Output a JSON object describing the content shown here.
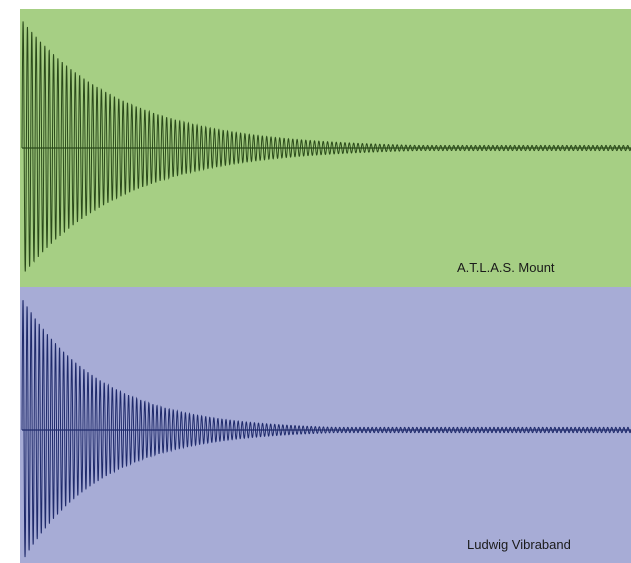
{
  "chart_data": [
    {
      "type": "line",
      "title": "",
      "xlabel": "",
      "ylabel": "",
      "grid": false,
      "series": [
        {
          "name": "A.T.L.A.S. Mount",
          "description_values": {
            "peak_amplitude": 1.0,
            "decay_constant": 0.15,
            "oscillation_cycles": 140,
            "tail_amplitude": 0.02
          }
        }
      ],
      "background_color": "#a6cf84",
      "trace_color": "#2a4a1a"
    },
    {
      "type": "line",
      "title": "",
      "xlabel": "",
      "ylabel": "",
      "grid": false,
      "series": [
        {
          "name": "Ludwig Vibraband",
          "description_values": {
            "peak_amplitude": 1.0,
            "decay_constant": 0.19,
            "oscillation_cycles": 150,
            "tail_amplitude": 0.02
          }
        }
      ],
      "background_color": "#a7acd6",
      "trace_color": "#1f2a6b"
    }
  ],
  "labels": {
    "top": "A.T.L.A.S. Mount",
    "bottom": "Ludwig Vibraband"
  }
}
